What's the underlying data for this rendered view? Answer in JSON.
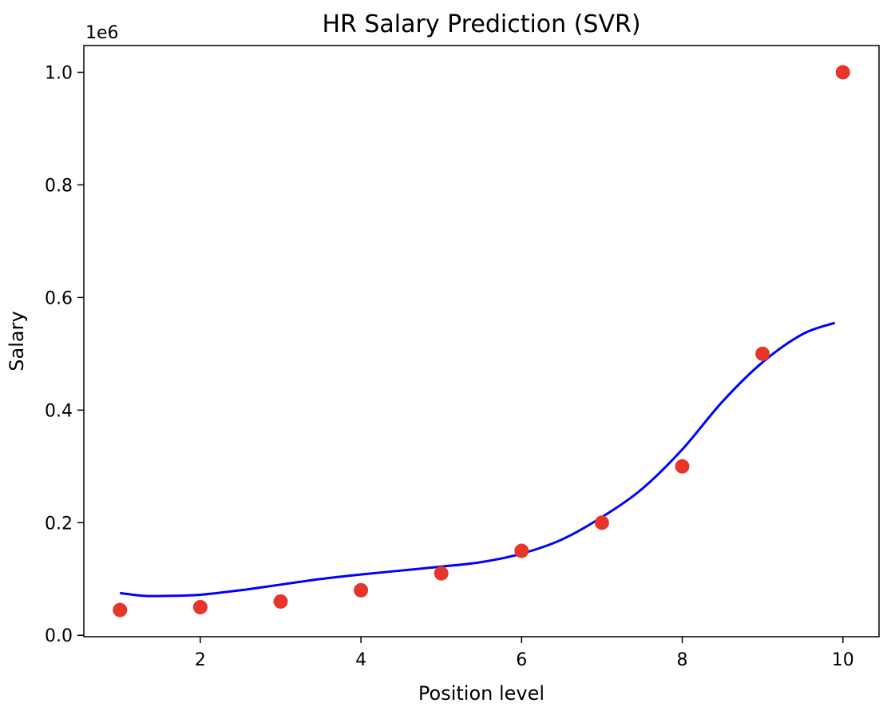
{
  "chart_data": {
    "type": "scatter",
    "title": "HR Salary Prediction (SVR)",
    "xlabel": "Position level",
    "ylabel": "Salary",
    "y_offset_label": "1e6",
    "xlim": [
      0.55,
      10.45
    ],
    "ylim": [
      -0.0025,
      1.0475
    ],
    "x_ticks": [
      2,
      4,
      6,
      8,
      10
    ],
    "x_tick_labels": [
      "2",
      "4",
      "6",
      "8",
      "10"
    ],
    "y_ticks": [
      0.0,
      0.2,
      0.4,
      0.6,
      0.8,
      1.0
    ],
    "y_tick_labels": [
      "0.0",
      "0.2",
      "0.4",
      "0.6",
      "0.8",
      "1.0"
    ],
    "grid": false,
    "series": [
      {
        "kind": "scatter",
        "color": "#e8352a",
        "x": [
          1,
          2,
          3,
          4,
          5,
          6,
          7,
          8,
          9,
          10
        ],
        "y": [
          0.045,
          0.05,
          0.06,
          0.08,
          0.11,
          0.15,
          0.2,
          0.3,
          0.5,
          1.0
        ]
      },
      {
        "kind": "line",
        "color": "#0000ff",
        "x": [
          1.0,
          1.3,
          1.6,
          2.0,
          2.5,
          3.0,
          3.5,
          4.0,
          4.5,
          5.0,
          5.5,
          6.0,
          6.5,
          7.0,
          7.5,
          8.0,
          8.5,
          9.0,
          9.5,
          9.9
        ],
        "y": [
          0.075,
          0.07,
          0.07,
          0.072,
          0.08,
          0.09,
          0.1,
          0.108,
          0.115,
          0.122,
          0.13,
          0.145,
          0.17,
          0.21,
          0.26,
          0.33,
          0.415,
          0.485,
          0.535,
          0.555
        ]
      }
    ]
  }
}
